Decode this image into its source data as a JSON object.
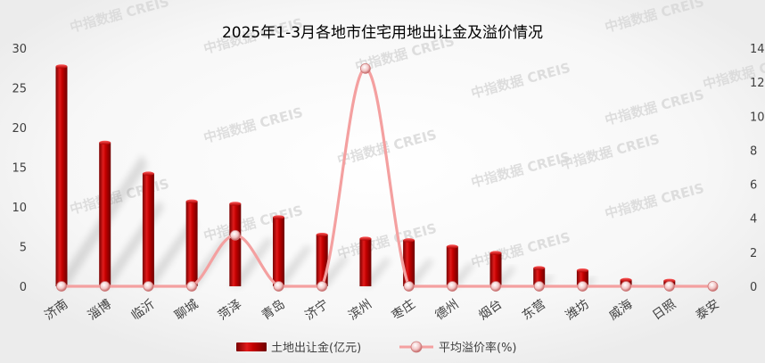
{
  "watermark": "中指数据 CREIS",
  "chart_data": {
    "type": "bar",
    "title": "2025年1-3月各地市住宅用地出让金及溢价情况",
    "categories": [
      "济南",
      "淄博",
      "临沂",
      "聊城",
      "菏泽",
      "青岛",
      "济宁",
      "滨州",
      "枣庄",
      "德州",
      "烟台",
      "东营",
      "潍坊",
      "威海",
      "日照",
      "泰安"
    ],
    "series": [
      {
        "name": "土地出让金(亿元)",
        "type": "bar",
        "axis": "left",
        "color": "#c00000",
        "values": [
          27.7,
          18.1,
          14.2,
          10.7,
          10.4,
          8.7,
          6.5,
          6.0,
          5.8,
          5.0,
          4.2,
          2.3,
          2.0,
          0.8,
          0.7,
          0.0
        ]
      },
      {
        "name": "平均溢价率(%)",
        "type": "line",
        "axis": "right",
        "color": "#f4a0a0",
        "values": [
          0,
          0,
          0,
          0,
          3.0,
          0,
          0,
          12.8,
          0,
          0,
          0,
          0,
          0,
          0,
          0,
          0
        ]
      }
    ],
    "y_left": {
      "min": 0,
      "max": 30,
      "ticks": [
        0,
        5,
        10,
        15,
        20,
        25,
        30
      ]
    },
    "y_right": {
      "min": 0,
      "max": 14,
      "ticks": [
        0,
        2,
        4,
        6,
        8,
        10,
        12,
        14
      ]
    },
    "legend_position": "bottom",
    "grid": false
  }
}
